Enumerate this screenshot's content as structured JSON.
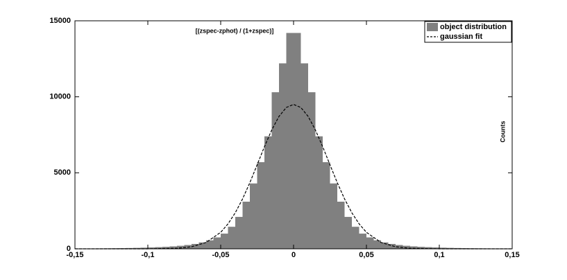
{
  "chart_data": {
    "type": "histogram",
    "title": "[(zspec-zphot) / (1+zspec)]",
    "ylabel": "Counts",
    "legend": "top-right",
    "xlim": [
      -0.15,
      0.15
    ],
    "ylim": [
      0,
      15000
    ],
    "xticks": [
      {
        "value": -0.15,
        "label": "-0,15"
      },
      {
        "value": -0.1,
        "label": "-0,1"
      },
      {
        "value": -0.05,
        "label": "-0,05"
      },
      0,
      {
        "value": 0.05,
        "label": "0,05"
      },
      {
        "value": 0.1,
        "label": "0,1"
      },
      {
        "value": 0.15,
        "label": "0,15"
      }
    ],
    "yticks": [
      0,
      5000,
      10000,
      15000
    ],
    "series": [
      {
        "name": "object distribution",
        "color": "#808080",
        "bins": [
          -0.15,
          -0.145,
          -0.14,
          -0.135,
          -0.13,
          -0.125,
          -0.12,
          -0.115,
          -0.11,
          -0.105,
          -0.1,
          -0.095,
          -0.09,
          -0.085,
          -0.08,
          -0.075,
          -0.07,
          -0.065,
          -0.06,
          -0.055,
          -0.05,
          -0.045,
          -0.04,
          -0.035,
          -0.03,
          -0.025,
          -0.02,
          -0.015,
          -0.01,
          -0.005,
          0,
          0.005,
          0.01,
          0.015,
          0.02,
          0.025,
          0.03,
          0.035,
          0.04,
          0.045,
          0.05,
          0.055,
          0.06,
          0.065,
          0.07,
          0.075,
          0.08,
          0.085,
          0.09,
          0.095,
          0.1,
          0.105,
          0.11,
          0.115,
          0.12,
          0.125,
          0.13,
          0.135,
          0.14,
          0.145,
          0.15
        ],
        "counts": [
          16,
          19,
          22,
          26,
          31,
          37,
          44,
          52,
          62,
          75,
          90,
          110,
          130,
          160,
          200,
          250,
          320,
          420,
          560,
          750,
          1000,
          1450,
          2100,
          3100,
          4300,
          5700,
          7400,
          10300,
          12200,
          14200,
          14200,
          12200,
          10300,
          7400,
          5700,
          4300,
          3100,
          2100,
          1450,
          1000,
          750,
          560,
          420,
          320,
          250,
          200,
          160,
          130,
          110,
          90,
          75,
          62,
          52,
          44,
          37,
          31,
          26,
          22,
          19,
          16
        ]
      },
      {
        "name": "gaussian fit",
        "color": "#000000",
        "line_style": "dashed",
        "x": [
          -0.15,
          -0.1,
          -0.08,
          -0.07,
          -0.06,
          -0.05,
          -0.045,
          -0.04,
          -0.035,
          -0.03,
          -0.025,
          -0.02,
          -0.015,
          -0.01,
          -0.005,
          0,
          0.005,
          0.01,
          0.015,
          0.02,
          0.025,
          0.03,
          0.035,
          0.04,
          0.045,
          0.05,
          0.06,
          0.07,
          0.08,
          0.1,
          0.15
        ],
        "values": [
          0,
          1,
          37,
          135,
          417,
          1084,
          1638,
          2370,
          3280,
          4349,
          5522,
          6713,
          7815,
          8711,
          9296,
          9500,
          9296,
          8711,
          7815,
          6713,
          5522,
          4349,
          3280,
          2370,
          1638,
          1084,
          417,
          135,
          37,
          1,
          0
        ]
      }
    ]
  }
}
